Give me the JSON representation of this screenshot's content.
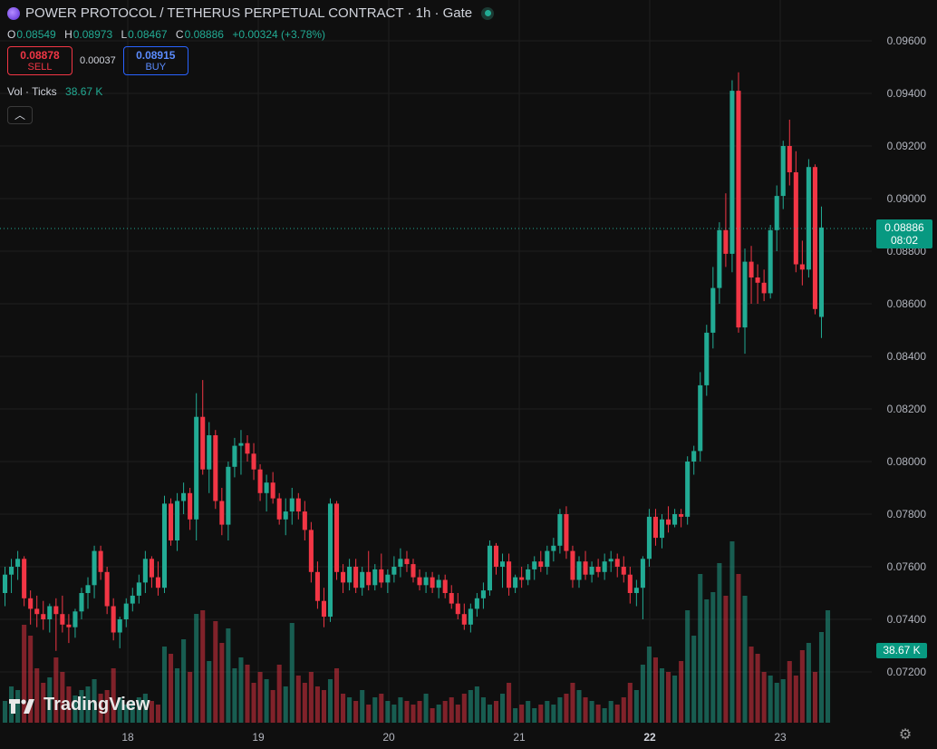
{
  "header": {
    "title": "POWER PROTOCOL / TETHERUS PERPETUAL CONTRACT · 1h · Gate"
  },
  "ohlc": {
    "o_label": "O",
    "o": "0.08549",
    "h_label": "H",
    "h": "0.08973",
    "l_label": "L",
    "l": "0.08467",
    "c_label": "C",
    "c": "0.08886",
    "change": "+0.00324 (+3.78%)"
  },
  "trade": {
    "sell_price": "0.08878",
    "sell_label": "SELL",
    "spread": "0.00037",
    "buy_price": "0.08915",
    "buy_label": "BUY"
  },
  "volume_legend": {
    "label": "Vol · Ticks",
    "value": "38.67 K"
  },
  "price_tag": {
    "price": "0.08886",
    "countdown": "08:02"
  },
  "volume_tag": "38.67 K",
  "logo_text": "TradingView",
  "colors": {
    "up": "#22ab94",
    "down": "#f23645",
    "background": "#0f0f0f",
    "grid": "#1f1f1f"
  },
  "chart_data": {
    "type": "candlestick",
    "title": "POWER PROTOCOL / TETHERUS PERPETUAL CONTRACT · 1h · Gate",
    "y_ticks": [
      "0.09600",
      "0.09400",
      "0.09200",
      "0.09000",
      "0.08800",
      "0.08600",
      "0.08400",
      "0.08200",
      "0.08000",
      "0.07800",
      "0.07600",
      "0.07400",
      "0.07200"
    ],
    "x_ticks": [
      "18",
      "19",
      "20",
      "21",
      "22",
      "23"
    ],
    "ylim": [
      0.0705,
      0.0972
    ],
    "x_range_hours": [
      0,
      148
    ],
    "last_price": 0.08886,
    "candles": [
      [
        0.075,
        0.076,
        0.0745,
        0.0757
      ],
      [
        0.0757,
        0.0763,
        0.075,
        0.076
      ],
      [
        0.076,
        0.0766,
        0.0755,
        0.0763
      ],
      [
        0.0763,
        0.0764,
        0.0745,
        0.0748
      ],
      [
        0.0748,
        0.0751,
        0.0738,
        0.0744
      ],
      [
        0.0744,
        0.0749,
        0.0737,
        0.0742
      ],
      [
        0.0742,
        0.0747,
        0.0736,
        0.074
      ],
      [
        0.074,
        0.0746,
        0.0735,
        0.0745
      ],
      [
        0.0745,
        0.0748,
        0.0728,
        0.0742
      ],
      [
        0.0742,
        0.0749,
        0.0735,
        0.0738
      ],
      [
        0.0738,
        0.0742,
        0.0731,
        0.0737
      ],
      [
        0.0737,
        0.0744,
        0.0733,
        0.0743
      ],
      [
        0.0743,
        0.0752,
        0.074,
        0.075
      ],
      [
        0.075,
        0.0756,
        0.0744,
        0.0753
      ],
      [
        0.0753,
        0.0768,
        0.0748,
        0.0766
      ],
      [
        0.0766,
        0.0768,
        0.0755,
        0.0758
      ],
      [
        0.0758,
        0.076,
        0.0742,
        0.0745
      ],
      [
        0.0745,
        0.0748,
        0.0732,
        0.0735
      ],
      [
        0.0735,
        0.0741,
        0.0729,
        0.074
      ],
      [
        0.074,
        0.0748,
        0.0737,
        0.0746
      ],
      [
        0.0746,
        0.0752,
        0.0743,
        0.0749
      ],
      [
        0.0749,
        0.0757,
        0.0746,
        0.0754
      ],
      [
        0.0754,
        0.0766,
        0.075,
        0.0763
      ],
      [
        0.0763,
        0.0764,
        0.0752,
        0.0756
      ],
      [
        0.0756,
        0.0762,
        0.0749,
        0.0752
      ],
      [
        0.0752,
        0.0787,
        0.075,
        0.0784
      ],
      [
        0.0784,
        0.0786,
        0.0768,
        0.077
      ],
      [
        0.077,
        0.0788,
        0.0766,
        0.0785
      ],
      [
        0.0785,
        0.0792,
        0.078,
        0.0788
      ],
      [
        0.0788,
        0.079,
        0.0774,
        0.0778
      ],
      [
        0.0778,
        0.0826,
        0.077,
        0.0817
      ],
      [
        0.0817,
        0.0831,
        0.0795,
        0.0797
      ],
      [
        0.0797,
        0.0815,
        0.0788,
        0.081
      ],
      [
        0.081,
        0.0812,
        0.0782,
        0.0785
      ],
      [
        0.0785,
        0.079,
        0.0772,
        0.0776
      ],
      [
        0.0776,
        0.08,
        0.077,
        0.0798
      ],
      [
        0.0798,
        0.0809,
        0.0794,
        0.0806
      ],
      [
        0.0806,
        0.0812,
        0.0795,
        0.0807
      ],
      [
        0.0807,
        0.081,
        0.08,
        0.0803
      ],
      [
        0.0803,
        0.0807,
        0.0793,
        0.0797
      ],
      [
        0.0797,
        0.0799,
        0.0785,
        0.0788
      ],
      [
        0.0788,
        0.0795,
        0.0781,
        0.0792
      ],
      [
        0.0792,
        0.0796,
        0.0784,
        0.0786
      ],
      [
        0.0786,
        0.0788,
        0.0776,
        0.0778
      ],
      [
        0.0778,
        0.0786,
        0.0772,
        0.0781
      ],
      [
        0.0781,
        0.079,
        0.0776,
        0.0786
      ],
      [
        0.0786,
        0.0788,
        0.0778,
        0.0781
      ],
      [
        0.0781,
        0.0785,
        0.077,
        0.0774
      ],
      [
        0.0774,
        0.0777,
        0.0754,
        0.0758
      ],
      [
        0.0758,
        0.0762,
        0.0744,
        0.0747
      ],
      [
        0.0747,
        0.0752,
        0.0737,
        0.0741
      ],
      [
        0.0741,
        0.0786,
        0.0739,
        0.0784
      ],
      [
        0.0784,
        0.0785,
        0.0755,
        0.0758
      ],
      [
        0.0758,
        0.0761,
        0.075,
        0.0754
      ],
      [
        0.0754,
        0.0763,
        0.0751,
        0.076
      ],
      [
        0.076,
        0.0763,
        0.075,
        0.0752
      ],
      [
        0.0752,
        0.076,
        0.0749,
        0.0758
      ],
      [
        0.0758,
        0.0766,
        0.0751,
        0.0753
      ],
      [
        0.0753,
        0.0761,
        0.0751,
        0.0759
      ],
      [
        0.0759,
        0.0765,
        0.0752,
        0.0754
      ],
      [
        0.0754,
        0.0759,
        0.075,
        0.0757
      ],
      [
        0.0757,
        0.0764,
        0.0754,
        0.076
      ],
      [
        0.076,
        0.0767,
        0.0756,
        0.0763
      ],
      [
        0.0763,
        0.0766,
        0.0758,
        0.0761
      ],
      [
        0.0761,
        0.0763,
        0.0754,
        0.0756
      ],
      [
        0.0756,
        0.0759,
        0.0751,
        0.0753
      ],
      [
        0.0753,
        0.0758,
        0.075,
        0.0756
      ],
      [
        0.0756,
        0.0758,
        0.075,
        0.0752
      ],
      [
        0.0752,
        0.0757,
        0.0748,
        0.0755
      ],
      [
        0.0755,
        0.0757,
        0.0748,
        0.075
      ],
      [
        0.075,
        0.0753,
        0.0744,
        0.0746
      ],
      [
        0.0746,
        0.075,
        0.074,
        0.0742
      ],
      [
        0.0742,
        0.0746,
        0.0736,
        0.0738
      ],
      [
        0.0738,
        0.0746,
        0.0735,
        0.0744
      ],
      [
        0.0744,
        0.075,
        0.0741,
        0.0748
      ],
      [
        0.0748,
        0.0754,
        0.0744,
        0.0751
      ],
      [
        0.0751,
        0.077,
        0.0749,
        0.0768
      ],
      [
        0.0768,
        0.0769,
        0.0757,
        0.076
      ],
      [
        0.076,
        0.0765,
        0.0752,
        0.0762
      ],
      [
        0.0762,
        0.0765,
        0.0749,
        0.0752
      ],
      [
        0.0752,
        0.0757,
        0.075,
        0.0756
      ],
      [
        0.0756,
        0.076,
        0.0752,
        0.0755
      ],
      [
        0.0755,
        0.0761,
        0.0753,
        0.0759
      ],
      [
        0.0759,
        0.0764,
        0.0755,
        0.0762
      ],
      [
        0.0762,
        0.0766,
        0.0758,
        0.076
      ],
      [
        0.076,
        0.0768,
        0.0757,
        0.0766
      ],
      [
        0.0766,
        0.0771,
        0.0762,
        0.0768
      ],
      [
        0.0768,
        0.0782,
        0.0765,
        0.078
      ],
      [
        0.078,
        0.0783,
        0.0763,
        0.0766
      ],
      [
        0.0766,
        0.0768,
        0.0752,
        0.0755
      ],
      [
        0.0755,
        0.0764,
        0.0752,
        0.0762
      ],
      [
        0.0762,
        0.0766,
        0.0755,
        0.0757
      ],
      [
        0.0757,
        0.0762,
        0.0754,
        0.076
      ],
      [
        0.076,
        0.0763,
        0.0756,
        0.0758
      ],
      [
        0.0758,
        0.0765,
        0.0755,
        0.0762
      ],
      [
        0.0762,
        0.0766,
        0.0758,
        0.0763
      ],
      [
        0.0763,
        0.0765,
        0.0756,
        0.076
      ],
      [
        0.076,
        0.0764,
        0.0754,
        0.0757
      ],
      [
        0.0757,
        0.076,
        0.0746,
        0.075
      ],
      [
        0.075,
        0.0755,
        0.0745,
        0.0752
      ],
      [
        0.0752,
        0.0764,
        0.074,
        0.0763
      ],
      [
        0.0763,
        0.0782,
        0.076,
        0.0779
      ],
      [
        0.0779,
        0.0782,
        0.0768,
        0.0771
      ],
      [
        0.0771,
        0.078,
        0.0767,
        0.0778
      ],
      [
        0.0778,
        0.0783,
        0.0773,
        0.0776
      ],
      [
        0.0776,
        0.0782,
        0.0775,
        0.078
      ],
      [
        0.078,
        0.0782,
        0.0775,
        0.0779
      ],
      [
        0.0779,
        0.0802,
        0.0776,
        0.08
      ],
      [
        0.08,
        0.0806,
        0.0795,
        0.0804
      ],
      [
        0.0804,
        0.0834,
        0.08,
        0.0829
      ],
      [
        0.0829,
        0.0852,
        0.0825,
        0.0849
      ],
      [
        0.0849,
        0.0874,
        0.0843,
        0.0866
      ],
      [
        0.0866,
        0.0891,
        0.086,
        0.0888
      ],
      [
        0.0888,
        0.0902,
        0.0874,
        0.0879
      ],
      [
        0.0879,
        0.0945,
        0.0872,
        0.0941
      ],
      [
        0.0941,
        0.0948,
        0.0849,
        0.0851
      ],
      [
        0.0851,
        0.0881,
        0.0841,
        0.0876
      ],
      [
        0.0876,
        0.0882,
        0.086,
        0.087
      ],
      [
        0.087,
        0.0875,
        0.086,
        0.0868
      ],
      [
        0.0868,
        0.0873,
        0.0861,
        0.0864
      ],
      [
        0.0864,
        0.089,
        0.0862,
        0.0888
      ],
      [
        0.0888,
        0.0905,
        0.088,
        0.0901
      ],
      [
        0.0901,
        0.0922,
        0.0896,
        0.092
      ],
      [
        0.092,
        0.093,
        0.0905,
        0.091
      ],
      [
        0.091,
        0.0918,
        0.0872,
        0.0875
      ],
      [
        0.0875,
        0.0884,
        0.0867,
        0.0873
      ],
      [
        0.0873,
        0.0915,
        0.087,
        0.0912
      ],
      [
        0.0912,
        0.0913,
        0.0856,
        0.0858
      ],
      [
        0.0855,
        0.0897,
        0.0847,
        0.0889
      ]
    ],
    "volume_label": "Vol · Ticks",
    "volume_last": "38.67 K",
    "volumes": [
      0.12,
      0.2,
      0.18,
      0.54,
      0.48,
      0.3,
      0.22,
      0.25,
      0.36,
      0.28,
      0.2,
      0.15,
      0.18,
      0.2,
      0.24,
      0.16,
      0.18,
      0.3,
      0.14,
      0.1,
      0.12,
      0.14,
      0.16,
      0.12,
      0.1,
      0.42,
      0.38,
      0.3,
      0.46,
      0.28,
      0.6,
      0.62,
      0.34,
      0.56,
      0.44,
      0.52,
      0.3,
      0.36,
      0.32,
      0.22,
      0.28,
      0.24,
      0.18,
      0.32,
      0.2,
      0.55,
      0.26,
      0.22,
      0.28,
      0.2,
      0.18,
      0.24,
      0.3,
      0.16,
      0.14,
      0.12,
      0.18,
      0.1,
      0.14,
      0.16,
      0.12,
      0.1,
      0.14,
      0.12,
      0.1,
      0.12,
      0.16,
      0.08,
      0.1,
      0.12,
      0.14,
      0.1,
      0.16,
      0.18,
      0.2,
      0.14,
      0.1,
      0.12,
      0.16,
      0.22,
      0.08,
      0.1,
      0.12,
      0.08,
      0.1,
      0.12,
      0.1,
      0.14,
      0.16,
      0.22,
      0.18,
      0.14,
      0.12,
      0.1,
      0.08,
      0.12,
      0.1,
      0.14,
      0.22,
      0.18,
      0.32,
      0.42,
      0.36,
      0.3,
      0.28,
      0.26,
      0.34,
      0.62,
      0.48,
      0.82,
      0.68,
      0.72,
      0.88,
      0.7,
      1.0,
      0.82,
      0.7,
      0.42,
      0.38,
      0.28,
      0.26,
      0.22,
      0.24,
      0.34,
      0.26,
      0.4,
      0.44,
      0.28,
      0.5,
      0.62
    ]
  }
}
